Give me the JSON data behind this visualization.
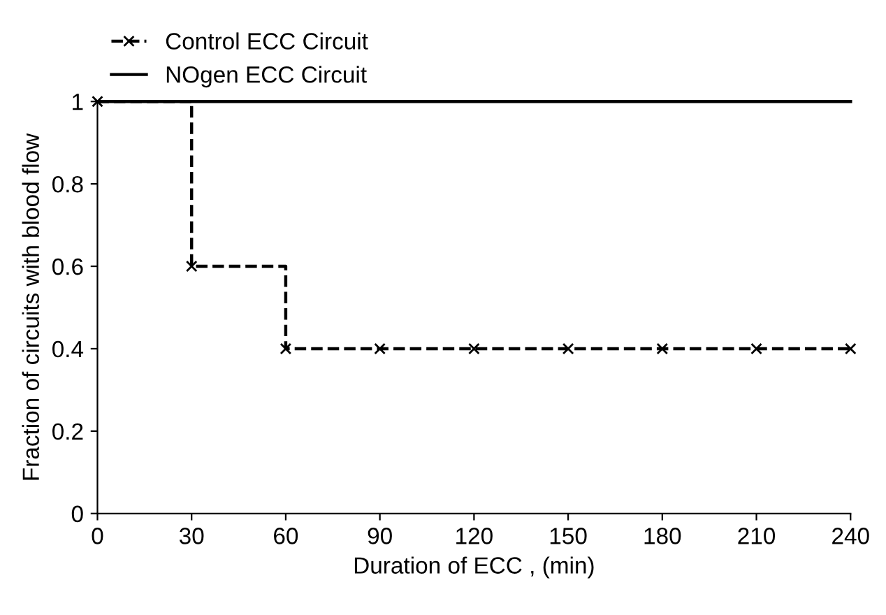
{
  "chart_data": {
    "type": "line",
    "xlabel": "Duration of ECC , (min)",
    "ylabel": "Fraction of circuits with blood flow",
    "series": [
      {
        "name": "Control ECC Circuit",
        "type": "step",
        "color": "#000000",
        "marker": "cross",
        "line_style": "dashed",
        "x": [
          0,
          30,
          60,
          90,
          120,
          150,
          180,
          210,
          240
        ],
        "values": [
          1,
          0.6,
          0.4,
          0.4,
          0.4,
          0.4,
          0.4,
          0.4,
          0.4
        ]
      },
      {
        "name": "NOgen ECC Circuit",
        "color": "#000000",
        "line_style": "solid",
        "x": [
          0,
          240
        ],
        "values": [
          1,
          1
        ]
      }
    ],
    "xlim": [
      0,
      240
    ],
    "xticks": [
      0,
      30,
      60,
      90,
      120,
      150,
      180,
      210,
      240
    ],
    "ylim": [
      0,
      1
    ],
    "yticks": [
      0,
      0.2,
      0.4,
      0.6,
      0.8,
      1
    ],
    "grid": false,
    "legend": "top left"
  }
}
